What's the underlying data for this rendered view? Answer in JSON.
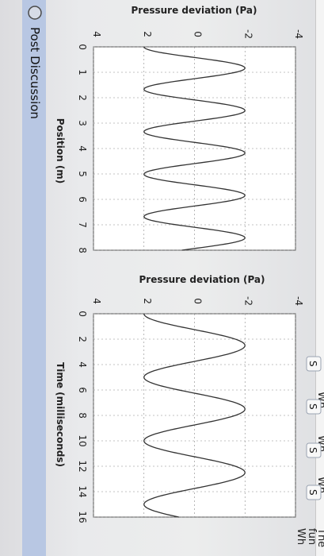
{
  "post_discussion": {
    "label": "Post Discussion",
    "icon": "speech-bubble-icon"
  },
  "right_panel": {
    "text": [
      "The",
      "fun",
      "Wh",
      "Wh",
      "Wh",
      "Wh"
    ],
    "buttons": [
      "S",
      "S",
      "S",
      "S"
    ]
  },
  "chart_data": [
    {
      "type": "line",
      "title": "",
      "ylabel": "Pressure deviation (Pa)",
      "xlabel": "Position (m)",
      "xlim": [
        0,
        8
      ],
      "ylim": [
        -4,
        4
      ],
      "xticks": [
        "0",
        "1",
        "2",
        "3",
        "4",
        "5",
        "6",
        "7",
        "8"
      ],
      "yticks": [
        "4",
        "2",
        "0",
        "-2",
        "-4"
      ],
      "grid": true,
      "series": [
        {
          "amplitude": 2,
          "wavelength": 1.67,
          "phase": 0,
          "x": [
            0,
            1,
            2,
            3,
            4,
            5,
            6,
            7,
            8
          ]
        }
      ]
    },
    {
      "type": "line",
      "title": "",
      "ylabel": "Pressure deviation (Pa)",
      "xlabel": "Time (milliseconds)",
      "xlim": [
        0,
        16
      ],
      "ylim": [
        -4,
        4
      ],
      "xticks": [
        "0",
        "2",
        "4",
        "6",
        "8",
        "10",
        "12",
        "14",
        "16"
      ],
      "yticks": [
        "4",
        "2",
        "0",
        "-2",
        "-4"
      ],
      "grid": true,
      "series": [
        {
          "amplitude": 2,
          "period": 5,
          "phase": 0,
          "x": [
            0,
            2,
            4,
            6,
            8,
            10,
            12,
            14,
            16
          ]
        }
      ]
    }
  ]
}
